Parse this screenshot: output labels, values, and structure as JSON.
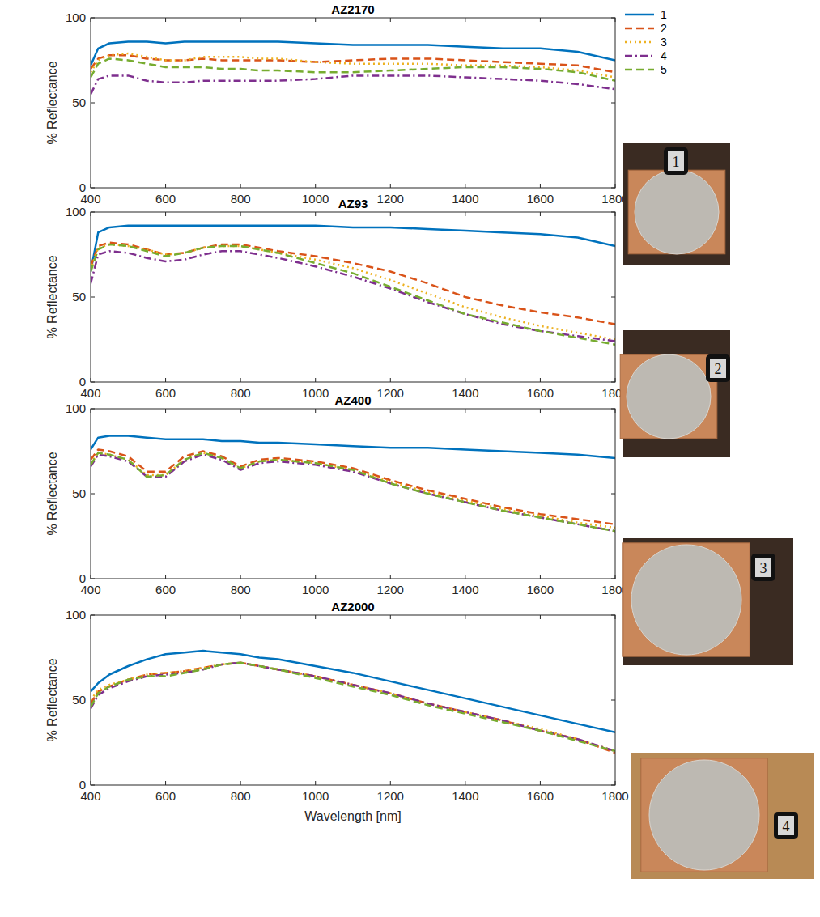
{
  "chart_data": [
    {
      "type": "line",
      "title": "AZ2170",
      "ylabel": "% Reflectance",
      "x": [
        400,
        420,
        450,
        500,
        550,
        600,
        650,
        700,
        750,
        800,
        850,
        900,
        1000,
        1100,
        1200,
        1300,
        1400,
        1500,
        1600,
        1700,
        1800
      ],
      "xlim": [
        400,
        1800
      ],
      "xticks": [
        400,
        600,
        800,
        1000,
        1200,
        1400,
        1600,
        1800
      ],
      "ylim": [
        0,
        100
      ],
      "yticks": [
        0,
        50,
        100
      ],
      "legend": "outside-right",
      "series": [
        {
          "name": "1",
          "color": "#0072bd",
          "line_style": "solid",
          "values": [
            72,
            82,
            85,
            86,
            86,
            85,
            86,
            86,
            86,
            86,
            86,
            86,
            85,
            84,
            84,
            84,
            83,
            82,
            82,
            80,
            75
          ]
        },
        {
          "name": "2",
          "color": "#d95319",
          "line_style": "dashed",
          "values": [
            70,
            76,
            78,
            78,
            76,
            75,
            75,
            76,
            75,
            75,
            75,
            75,
            74,
            75,
            76,
            76,
            75,
            74,
            73,
            72,
            68
          ]
        },
        {
          "name": "3",
          "color": "#edb120",
          "line_style": "dotted",
          "values": [
            68,
            75,
            78,
            79,
            77,
            75,
            75,
            77,
            77,
            77,
            76,
            76,
            74,
            73,
            73,
            73,
            72,
            72,
            71,
            69,
            65
          ]
        },
        {
          "name": "4",
          "color": "#7e2f8e",
          "line_style": "dashdot",
          "values": [
            55,
            64,
            66,
            66,
            63,
            62,
            62,
            63,
            63,
            63,
            63,
            63,
            64,
            66,
            66,
            66,
            65,
            64,
            63,
            61,
            58
          ]
        },
        {
          "name": "5",
          "color": "#77ac30",
          "line_style": "dashed",
          "values": [
            65,
            73,
            76,
            75,
            73,
            71,
            71,
            71,
            70,
            70,
            69,
            69,
            68,
            68,
            69,
            70,
            71,
            71,
            70,
            68,
            63
          ]
        }
      ]
    },
    {
      "type": "line",
      "title": "AZ93",
      "ylabel": "% Reflectance",
      "x": [
        400,
        420,
        450,
        500,
        550,
        600,
        650,
        700,
        750,
        800,
        850,
        900,
        1000,
        1100,
        1200,
        1300,
        1400,
        1500,
        1600,
        1700,
        1800
      ],
      "xlim": [
        400,
        1800
      ],
      "xticks": [
        400,
        600,
        800,
        1000,
        1200,
        1400,
        1600,
        1800
      ],
      "ylim": [
        0,
        100
      ],
      "yticks": [
        0,
        50,
        100
      ],
      "series": [
        {
          "name": "1",
          "color": "#0072bd",
          "line_style": "solid",
          "values": [
            65,
            88,
            91,
            92,
            92,
            92,
            92,
            92,
            92,
            92,
            92,
            92,
            92,
            91,
            91,
            90,
            89,
            88,
            87,
            85,
            80
          ]
        },
        {
          "name": "2",
          "color": "#d95319",
          "line_style": "dashed",
          "values": [
            68,
            80,
            82,
            81,
            78,
            75,
            76,
            79,
            81,
            81,
            79,
            77,
            74,
            70,
            65,
            58,
            50,
            45,
            41,
            38,
            34
          ]
        },
        {
          "name": "3",
          "color": "#edb120",
          "line_style": "dotted",
          "values": [
            66,
            79,
            81,
            80,
            78,
            75,
            76,
            79,
            80,
            80,
            78,
            76,
            72,
            67,
            60,
            52,
            44,
            38,
            33,
            29,
            25
          ]
        },
        {
          "name": "4",
          "color": "#7e2f8e",
          "line_style": "dashdot",
          "values": [
            58,
            75,
            77,
            76,
            73,
            71,
            72,
            75,
            77,
            77,
            75,
            73,
            68,
            62,
            55,
            47,
            40,
            34,
            30,
            27,
            24
          ]
        },
        {
          "name": "5",
          "color": "#77ac30",
          "line_style": "dashed",
          "values": [
            65,
            78,
            81,
            80,
            77,
            74,
            76,
            79,
            80,
            80,
            78,
            76,
            70,
            64,
            56,
            48,
            40,
            35,
            30,
            26,
            22
          ]
        }
      ]
    },
    {
      "type": "line",
      "title": "AZ400",
      "ylabel": "% Reflectance",
      "x": [
        400,
        420,
        450,
        500,
        550,
        600,
        650,
        700,
        750,
        800,
        850,
        900,
        1000,
        1100,
        1200,
        1300,
        1400,
        1500,
        1600,
        1700,
        1800
      ],
      "xlim": [
        400,
        1800
      ],
      "xticks": [
        400,
        600,
        800,
        1000,
        1200,
        1400,
        1600,
        1800
      ],
      "ylim": [
        0,
        100
      ],
      "yticks": [
        0,
        50,
        100
      ],
      "series": [
        {
          "name": "1",
          "color": "#0072bd",
          "line_style": "solid",
          "values": [
            76,
            83,
            84,
            84,
            83,
            82,
            82,
            82,
            81,
            81,
            80,
            80,
            79,
            78,
            77,
            77,
            76,
            75,
            74,
            73,
            71
          ]
        },
        {
          "name": "2",
          "color": "#d95319",
          "line_style": "dashed",
          "values": [
            70,
            76,
            75,
            72,
            63,
            63,
            72,
            75,
            72,
            66,
            70,
            71,
            69,
            65,
            58,
            52,
            47,
            42,
            38,
            35,
            32
          ]
        },
        {
          "name": "3",
          "color": "#edb120",
          "line_style": "dotted",
          "values": [
            68,
            74,
            73,
            70,
            61,
            61,
            70,
            74,
            71,
            65,
            69,
            70,
            68,
            64,
            57,
            51,
            46,
            41,
            37,
            33,
            30
          ]
        },
        {
          "name": "4",
          "color": "#7e2f8e",
          "line_style": "dashdot",
          "values": [
            66,
            73,
            72,
            69,
            60,
            60,
            69,
            73,
            70,
            64,
            68,
            69,
            67,
            63,
            56,
            50,
            45,
            40,
            36,
            32,
            28
          ]
        },
        {
          "name": "5",
          "color": "#77ac30",
          "line_style": "dashed",
          "values": [
            67,
            74,
            73,
            70,
            60,
            61,
            70,
            74,
            71,
            65,
            69,
            70,
            68,
            64,
            56,
            50,
            45,
            40,
            36,
            32,
            28
          ]
        }
      ]
    },
    {
      "type": "line",
      "title": "AZ2000",
      "ylabel": "% Reflectance",
      "xlabel": "Wavelength [nm]",
      "x": [
        400,
        420,
        450,
        500,
        550,
        600,
        650,
        700,
        750,
        800,
        850,
        900,
        1000,
        1100,
        1200,
        1300,
        1400,
        1500,
        1600,
        1700,
        1800
      ],
      "xlim": [
        400,
        1800
      ],
      "xticks": [
        400,
        600,
        800,
        1000,
        1200,
        1400,
        1600,
        1800
      ],
      "ylim": [
        0,
        100
      ],
      "yticks": [
        0,
        50,
        100
      ],
      "series": [
        {
          "name": "1",
          "color": "#0072bd",
          "line_style": "solid",
          "values": [
            55,
            60,
            65,
            70,
            74,
            77,
            78,
            79,
            78,
            77,
            75,
            74,
            70,
            66,
            61,
            56,
            51,
            46,
            41,
            36,
            31
          ]
        },
        {
          "name": "2",
          "color": "#d95319",
          "line_style": "dashed",
          "values": [
            48,
            55,
            58,
            62,
            65,
            66,
            67,
            69,
            71,
            72,
            70,
            68,
            64,
            59,
            54,
            48,
            43,
            38,
            32,
            27,
            19
          ]
        },
        {
          "name": "3",
          "color": "#edb120",
          "line_style": "dotted",
          "values": [
            50,
            56,
            59,
            62,
            65,
            66,
            67,
            69,
            71,
            72,
            70,
            68,
            64,
            59,
            54,
            48,
            43,
            38,
            33,
            27,
            20
          ]
        },
        {
          "name": "4",
          "color": "#7e2f8e",
          "line_style": "dashdot",
          "values": [
            45,
            53,
            57,
            61,
            64,
            65,
            66,
            68,
            71,
            72,
            70,
            68,
            64,
            59,
            54,
            48,
            43,
            38,
            32,
            27,
            20
          ]
        },
        {
          "name": "5",
          "color": "#77ac30",
          "line_style": "dashed",
          "values": [
            46,
            54,
            58,
            62,
            64,
            64,
            66,
            68,
            71,
            72,
            70,
            68,
            63,
            58,
            53,
            47,
            42,
            37,
            32,
            26,
            20
          ]
        }
      ]
    }
  ],
  "photos": {
    "labels": [
      "1",
      "2",
      "3",
      "4"
    ]
  }
}
